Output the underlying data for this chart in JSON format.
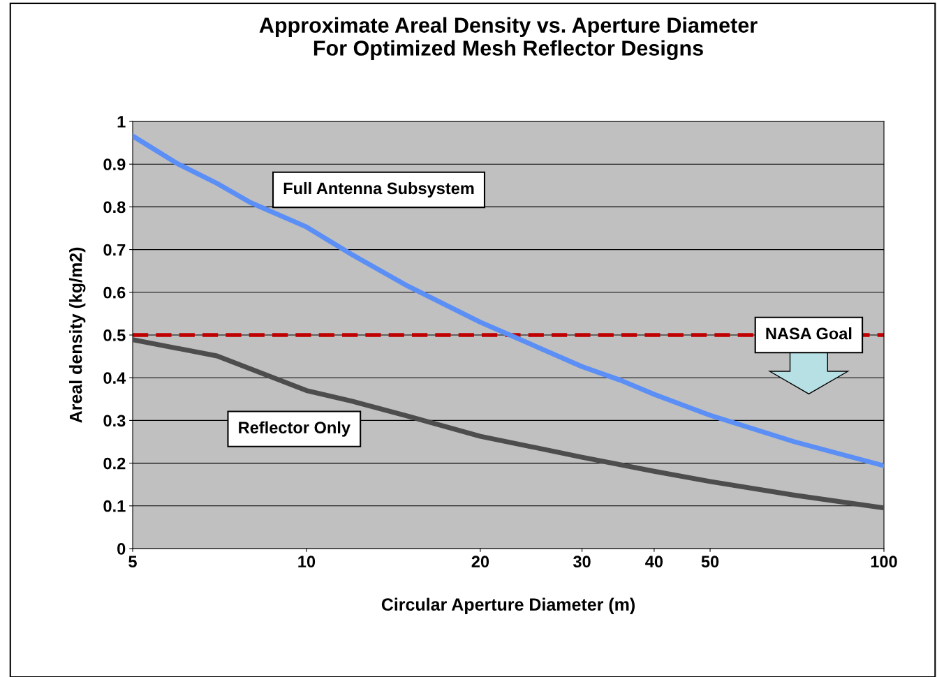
{
  "chart_data": {
    "type": "line",
    "title": "Approximate Areal Density vs. Aperture Diameter\nFor Optimized Mesh Reflector Designs",
    "xlabel": "Circular Aperture Diameter (m)",
    "ylabel": "Areal density (kg/m2)",
    "log": "x",
    "xlim": [
      5,
      100
    ],
    "xticks": [
      5,
      10,
      20,
      30,
      40,
      50,
      100
    ],
    "ylim": [
      0,
      1
    ],
    "yticks": [
      0,
      0.1,
      0.2,
      0.3,
      0.4,
      0.5,
      0.6,
      0.7,
      0.8,
      0.9,
      1
    ],
    "grid": "y",
    "legend": false,
    "marker": "none",
    "line_style": "solid",
    "series": [
      {
        "name": "Full Antenna Subsystem",
        "color": "#5b8ff5",
        "x": [
          5,
          6,
          7,
          8,
          10,
          12,
          15,
          20,
          22.5,
          30,
          35,
          40,
          50,
          70,
          100
        ],
        "values": [
          0.966,
          0.9,
          0.855,
          0.81,
          0.753,
          0.688,
          0.614,
          0.53,
          0.5,
          0.426,
          0.394,
          0.361,
          0.312,
          0.25,
          0.194
        ]
      },
      {
        "name": "Reflector Only",
        "color": "#4d4d4d",
        "x": [
          5,
          7,
          10,
          12,
          15,
          20,
          30,
          40,
          50,
          70,
          100
        ],
        "values": [
          0.489,
          0.451,
          0.37,
          0.345,
          0.31,
          0.263,
          0.214,
          0.181,
          0.157,
          0.125,
          0.095
        ]
      }
    ],
    "ref_lines": [
      {
        "axis": "y",
        "value": 0.5,
        "label": "NASA Goal",
        "color": "#c00000",
        "line_style": "dashed"
      }
    ]
  }
}
